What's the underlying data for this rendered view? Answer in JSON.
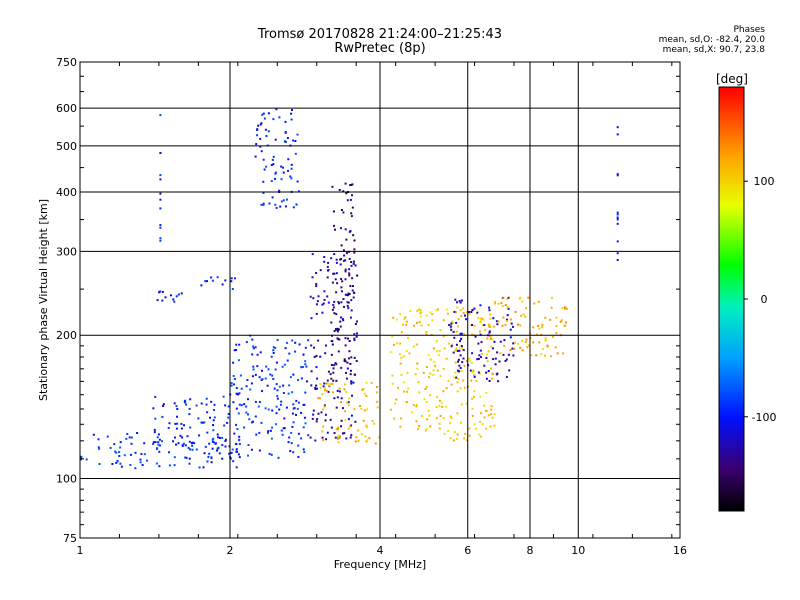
{
  "header": {
    "title_line1": "Tromsø 20170828 21:24:00–21:25:43",
    "title_line2": "RwPretec (8p)"
  },
  "phase_info": {
    "heading": "Phases",
    "line_o": "mean, sd,O:  -82.4, 20.0",
    "line_x": "mean, sd,X:  90.7, 23.8"
  },
  "colorbar": {
    "unit_label": "[deg]",
    "ticks": [
      {
        "value": 100,
        "label": "100"
      },
      {
        "value": 0,
        "label": "0"
      },
      {
        "value": -100,
        "label": "-100"
      }
    ],
    "range": [
      -180,
      180
    ]
  },
  "chart_data": {
    "type": "scatter",
    "xlabel": "Frequency [MHz]",
    "ylabel": "Stationary phase Virtual Height [km]",
    "xscale": "log",
    "yscale": "log",
    "xlim": [
      1,
      16
    ],
    "ylim": [
      75,
      750
    ],
    "xticks": [
      1,
      2,
      4,
      6,
      8,
      10,
      16
    ],
    "yticks": [
      75,
      100,
      200,
      300,
      400,
      500,
      600,
      750
    ],
    "x_gridlines": [
      2,
      4,
      6,
      8,
      10
    ],
    "y_gridlines": [
      100,
      200,
      300,
      400,
      500,
      600
    ],
    "color_variable": "phase [deg]",
    "clusters": [
      {
        "freq_range": [
          1.0,
          2.1
        ],
        "height_range": [
          105,
          125
        ],
        "phase": -90
      },
      {
        "freq_range": [
          1.4,
          2.0
        ],
        "height_range": [
          115,
          150
        ],
        "phase": -95
      },
      {
        "freq_range": [
          1.4,
          1.6
        ],
        "height_range": [
          235,
          248
        ],
        "phase": -105
      },
      {
        "freq_range": [
          1.75,
          2.05
        ],
        "height_range": [
          250,
          265
        ],
        "phase": -100
      },
      {
        "freq_range": [
          2.0,
          2.9
        ],
        "height_range": [
          110,
          200
        ],
        "phase": -90
      },
      {
        "freq_range": [
          2.25,
          2.75
        ],
        "height_range": [
          370,
          600
        ],
        "phase": -95
      },
      {
        "freq_range": [
          2.9,
          3.6
        ],
        "height_range": [
          120,
          300
        ],
        "phase": -125
      },
      {
        "freq_range": [
          3.2,
          3.6
        ],
        "height_range": [
          160,
          420
        ],
        "phase": -140
      },
      {
        "freq_range": [
          3.0,
          4.0
        ],
        "height_range": [
          118,
          160
        ],
        "phase": 110
      },
      {
        "freq_range": [
          4.2,
          6.8
        ],
        "height_range": [
          120,
          230
        ],
        "phase": 105
      },
      {
        "freq_range": [
          5.5,
          7.5
        ],
        "height_range": [
          160,
          240
        ],
        "phase": -125
      },
      {
        "freq_range": [
          6.5,
          9.5
        ],
        "height_range": [
          180,
          240
        ],
        "phase": 115
      },
      {
        "freq_range": [
          1.45,
          1.45
        ],
        "height_range": [
          300,
          600
        ],
        "phase": -100
      },
      {
        "freq_range": [
          12.0,
          12.0
        ],
        "height_range": [
          260,
          600
        ],
        "phase": -100
      }
    ]
  }
}
